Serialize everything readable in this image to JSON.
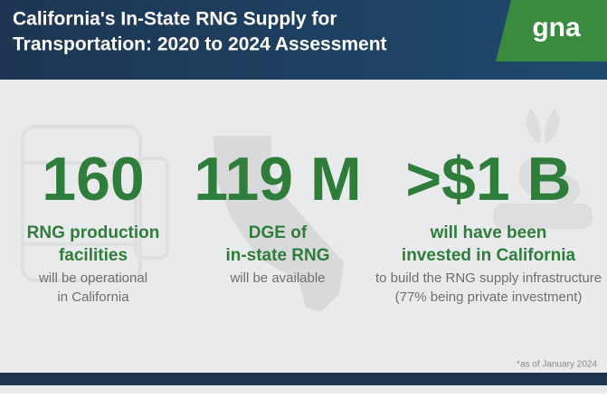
{
  "header": {
    "title_lines": [
      "California's In-State RNG Supply for",
      "Transportation: 2020 to 2024 Assessment"
    ],
    "logo": "gna"
  },
  "stats": [
    {
      "figure": "160",
      "highlight": [
        "RNG production",
        "facilities"
      ],
      "detail": [
        "will be operational",
        "in California"
      ]
    },
    {
      "figure": "119 M",
      "highlight": [
        "DGE of",
        "in-state RNG"
      ],
      "detail": [
        "will be available"
      ]
    },
    {
      "figure": ">$1 B",
      "highlight": [
        "will have been",
        "invested in California"
      ],
      "detail": [
        "to build the RNG supply infrastructure",
        "(77% being private investment)"
      ]
    }
  ],
  "footnote": "*as of January 2024"
}
